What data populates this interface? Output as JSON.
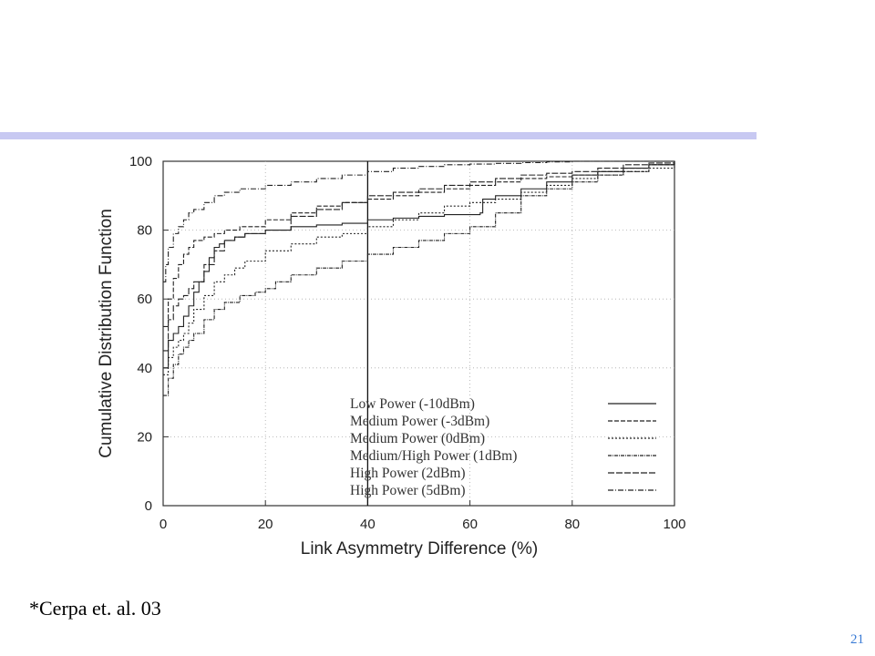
{
  "slide": {
    "accent_color": "#c8c9f2",
    "citation": "*Cerpa et. al. 03",
    "page_number": "21",
    "page_number_color": "#3a7bd5"
  },
  "chart_data": {
    "type": "line",
    "xlabel": "Link Asymmetry Difference (%)",
    "ylabel": "Cumulative Distribution Function",
    "xlim": [
      0,
      100
    ],
    "ylim": [
      0,
      100
    ],
    "x_ticks": [
      "0",
      "20",
      "40",
      "60",
      "80",
      "100"
    ],
    "y_ticks": [
      "0",
      "20",
      "40",
      "60",
      "80",
      "100"
    ],
    "grid": true,
    "legend_position": "bottom-right",
    "vertical_marker_x": 40,
    "series": [
      {
        "name": "Low Power (-10dBm)",
        "dash": "none",
        "x": [
          0,
          1,
          2,
          3,
          4,
          5,
          6,
          7,
          8,
          9,
          10,
          11,
          12,
          14,
          16,
          20,
          25,
          30,
          35,
          40,
          45,
          50,
          55,
          62,
          62.5,
          65,
          70,
          75,
          80,
          85,
          90,
          95,
          100
        ],
        "y": [
          40,
          48,
          50,
          52,
          55,
          58,
          62,
          65,
          68,
          72,
          75,
          76,
          77,
          78,
          79,
          80,
          81,
          81.5,
          82,
          83,
          83.5,
          84,
          84.5,
          85,
          89,
          90,
          92,
          94,
          96,
          97,
          98,
          99,
          100
        ]
      },
      {
        "name": "Medium Power (-3dBm)",
        "dash": "5,2",
        "x": [
          0,
          1,
          2,
          3,
          4,
          5,
          6,
          8,
          10,
          12,
          15,
          20,
          25,
          30,
          35,
          40,
          45,
          50,
          55,
          60,
          65,
          70,
          75,
          80,
          85,
          90,
          95,
          100
        ],
        "y": [
          52,
          60,
          66,
          70,
          73,
          75,
          77,
          78,
          79,
          80,
          81,
          83,
          85,
          87,
          88,
          89,
          90,
          91,
          92,
          93,
          94,
          95,
          95.5,
          96,
          97,
          98,
          99,
          100
        ]
      },
      {
        "name": "Medium Power (0dBm)",
        "dash": "2,2",
        "x": [
          0,
          1,
          2,
          3,
          4,
          5,
          6,
          8,
          10,
          12,
          14,
          16,
          20,
          25,
          30,
          35,
          40,
          45,
          50,
          55,
          60,
          65,
          70,
          75,
          80,
          85,
          90,
          95,
          100
        ],
        "y": [
          38,
          43,
          46,
          48,
          50,
          53,
          57,
          61,
          65,
          67,
          69,
          71,
          74,
          76,
          78,
          79,
          81,
          83,
          85,
          87,
          88,
          89,
          91,
          93,
          95,
          96,
          97,
          98,
          100
        ]
      },
      {
        "name": "Medium/High Power (1dBm)",
        "dash": "4,1,1,1",
        "x": [
          0,
          1,
          2,
          3,
          4,
          5,
          6,
          8,
          10,
          12,
          15,
          18,
          20,
          22,
          25,
          30,
          35,
          40,
          45,
          50,
          55,
          60,
          65,
          70,
          75,
          80,
          85,
          90,
          95,
          100
        ],
        "y": [
          32,
          37,
          41,
          44,
          46,
          48,
          50,
          54,
          57,
          59,
          61,
          62,
          63,
          65,
          67,
          69,
          71,
          73,
          75,
          77,
          79,
          81,
          85,
          90,
          92,
          94,
          96,
          97,
          99,
          100
        ]
      },
      {
        "name": "High Power (2dBm)",
        "dash": "7,2",
        "x": [
          0,
          1,
          2,
          3,
          4,
          5,
          6,
          8,
          10,
          12,
          14,
          16,
          20,
          25,
          30,
          35,
          40,
          45,
          50,
          55,
          60,
          65,
          70,
          75,
          80,
          85,
          90,
          95,
          100
        ],
        "y": [
          45,
          54,
          58,
          60,
          61,
          63,
          65,
          70,
          74,
          77,
          78,
          79,
          80,
          84,
          86,
          88,
          90,
          91,
          92,
          93,
          94,
          95,
          96,
          96.5,
          97,
          98,
          99,
          99.5,
          100
        ]
      },
      {
        "name": "High Power (5dBm)",
        "dash": "6,2,1,2",
        "x": [
          0,
          0.5,
          1,
          2,
          3,
          4,
          5,
          6,
          8,
          10,
          12,
          15,
          20,
          25,
          30,
          35,
          40,
          45,
          50,
          55,
          60,
          65,
          70,
          75,
          80,
          85,
          90,
          95,
          100
        ],
        "y": [
          65,
          70,
          75,
          79,
          81,
          83,
          85,
          86,
          88,
          90,
          91,
          92,
          93,
          94,
          95,
          96,
          97,
          98,
          98.5,
          99,
          99.2,
          99.4,
          99.6,
          99.8,
          100,
          100,
          100,
          100,
          100
        ]
      }
    ]
  }
}
